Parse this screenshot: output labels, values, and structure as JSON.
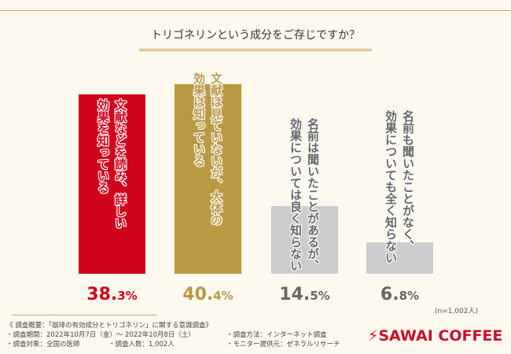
{
  "title": "トリゴネリンという成分をご存じですか？",
  "sample_note": "(n=1,002人)",
  "chart_data": {
    "type": "bar",
    "title": "トリゴネリンという成分をご存じですか？",
    "unit": "%",
    "categories": [
      "文献などを読み、詳しい効果を知っている",
      "文献は見ていないが、大体の効果は知っている",
      "名前は聞いたことがあるが、効果については良く知らない",
      "名前も聞いたことがなく、効果についても全く知らない"
    ],
    "label_lines": [
      [
        "文献などを読み、詳しい",
        "効果を知っている"
      ],
      [
        "文献は見ていないが、大体の",
        "効果は知っている"
      ],
      [
        "名前は聞いたことがあるが、",
        "効果については良く知らない"
      ],
      [
        "名前も聞いたことがなく、",
        "効果についても全く知らない"
      ]
    ],
    "values": [
      38.3,
      40.4,
      14.5,
      6.8
    ],
    "value_labels": [
      [
        "38.",
        "3%"
      ],
      [
        "40.",
        "4%"
      ],
      [
        "14.",
        "5%"
      ],
      [
        "6.",
        "8%"
      ]
    ],
    "colors": [
      "#d0021b",
      "#b89a45",
      "#cccccc",
      "#cccccc"
    ],
    "text_colors": [
      "#d0021b",
      "#b89a45",
      "#666666",
      "#666666"
    ],
    "ylim": [
      0,
      45
    ]
  },
  "notes": {
    "heading": "《 調査概要：「珈琲の有効成分とトリゴネリン」に関する意識調査》",
    "period": "・調査期間：2022年10月7日（金）～ 2022年10月8日（土）",
    "method": "・調査方法：インターネット調査",
    "target": "・調査対象：全国の医師",
    "count": "・調査人数：1,002人",
    "provider": "・モニター提供元：ゼネラルリサーチ"
  },
  "logo": "SAWAI COFFEE"
}
